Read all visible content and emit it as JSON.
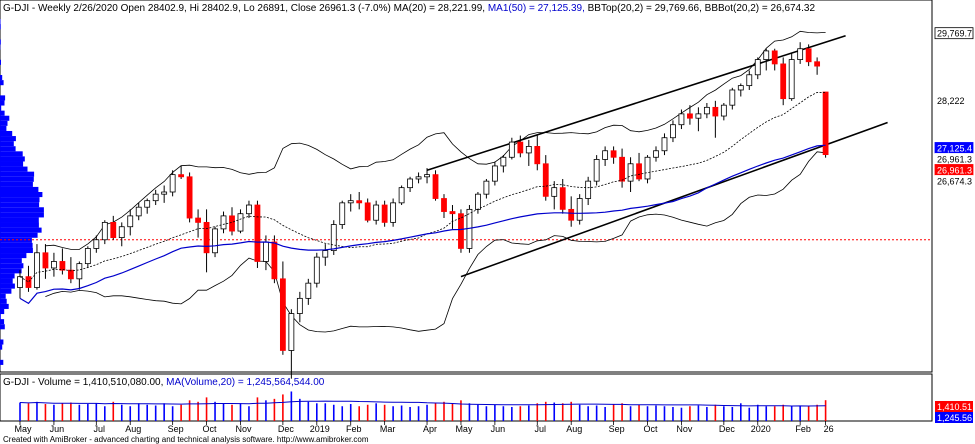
{
  "header": {
    "price_title": "G-DJI - Weekly 2/26/2020 Open 28402.9, Hi 28402.9, Lo 26891, Close 26961.3 (-7.0%) MA(20) = 28,221.99,",
    "ma50_label": "MA1(50) = 27,125.39,",
    "bb_label": "BBTop(20,2) = 29,769.66, BBBot(20,2) = 26,674.32",
    "volume_title": "G-DJI - Volume = 1,410,510,080.00,",
    "volume_ma_label": "MA(Volume,20) = 1,245,564,544.00"
  },
  "footer": {
    "credit": "Created with AmiBroker - advanced charting and technical analysis software. http://www.amibroker.com"
  },
  "price_axis": {
    "labels": [
      {
        "text": "29,769.7",
        "value": 29769.66,
        "bg": "#ffffff",
        "fg": "#000000",
        "border": "#000000"
      },
      {
        "text": "28,222",
        "value": 28221.99,
        "bg": "#ffffff",
        "fg": "#000000",
        "border": "#ffffff"
      },
      {
        "text": "27,125.4",
        "value": 27125.39,
        "bg": "#0000ff",
        "fg": "#ffffff",
        "border": "#0000ff"
      },
      {
        "text": "26,961.3",
        "value": 26961.3,
        "bg": "#ffffff",
        "fg": "#000000",
        "border": "#ffffff"
      },
      {
        "text": "26,961.3",
        "value": 26820,
        "bg": "#ff0000",
        "fg": "#ffffff",
        "border": "#ff0000"
      },
      {
        "text": "26,674.3",
        "value": 26674.32,
        "bg": "#ffffff",
        "fg": "#000000",
        "border": "#ffffff"
      }
    ]
  },
  "volume_axis": {
    "labels": [
      {
        "text": "1,410.51",
        "bg": "#ff0000",
        "fg": "#ffffff"
      },
      {
        "text": "1,245.56",
        "bg": "#0000ff",
        "fg": "#ffffff"
      }
    ]
  },
  "x_axis": {
    "labels": [
      "May",
      "Jun",
      "Jul",
      "Aug",
      "Sep",
      "Oct",
      "Nov",
      "Dec",
      "2019",
      "Feb",
      "Mar",
      "Apr",
      "May",
      "Jun",
      "Jul",
      "Aug",
      "Sep",
      "Oct",
      "Nov",
      "Dec",
      "2020",
      "Feb",
      "26"
    ],
    "label_week_index": [
      0,
      4,
      9,
      13,
      18,
      22,
      26,
      31,
      35,
      39,
      43,
      48,
      52,
      56,
      61,
      65,
      70,
      74,
      78,
      83,
      87,
      92,
      95
    ]
  },
  "colors": {
    "up": "#ffffff",
    "up_outline": "#000000",
    "down": "#ff0000",
    "ma20": "#000000",
    "ma50": "#0000cc",
    "bollinger": "#000000",
    "trendline": "#000000",
    "profile": "#0000ff",
    "level_line": "#ff0000",
    "volume_down": "#ff0000",
    "volume_up": "#0000ff",
    "volume_ma": "#0000cc"
  },
  "chart_data": {
    "type": "candlestick",
    "timeframe": "weekly",
    "y_scale": [
      22000,
      30200
    ],
    "reference_level": 25000,
    "price_at_high_profile": 25600,
    "candles": [
      {
        "o": 23900,
        "h": 24300,
        "l": 23650,
        "c": 24150
      },
      {
        "o": 24150,
        "h": 24400,
        "l": 23800,
        "c": 23900
      },
      {
        "o": 23900,
        "h": 24900,
        "l": 23850,
        "c": 24700
      },
      {
        "o": 24700,
        "h": 24900,
        "l": 24100,
        "c": 24350
      },
      {
        "o": 24350,
        "h": 24700,
        "l": 24150,
        "c": 24500
      },
      {
        "o": 24500,
        "h": 24800,
        "l": 24200,
        "c": 24300
      },
      {
        "o": 24300,
        "h": 24600,
        "l": 24000,
        "c": 24100
      },
      {
        "o": 24100,
        "h": 24500,
        "l": 23850,
        "c": 24450
      },
      {
        "o": 24450,
        "h": 24850,
        "l": 24350,
        "c": 24800
      },
      {
        "o": 24800,
        "h": 25100,
        "l": 24700,
        "c": 25000
      },
      {
        "o": 25000,
        "h": 25450,
        "l": 24900,
        "c": 25400
      },
      {
        "o": 25400,
        "h": 25550,
        "l": 25000,
        "c": 25050
      },
      {
        "o": 25050,
        "h": 25400,
        "l": 24850,
        "c": 25300
      },
      {
        "o": 25300,
        "h": 25700,
        "l": 25100,
        "c": 25550
      },
      {
        "o": 25550,
        "h": 25850,
        "l": 25450,
        "c": 25750
      },
      {
        "o": 25750,
        "h": 25950,
        "l": 25600,
        "c": 25900
      },
      {
        "o": 25900,
        "h": 26150,
        "l": 25800,
        "c": 26050
      },
      {
        "o": 26050,
        "h": 26250,
        "l": 25850,
        "c": 26100
      },
      {
        "o": 26100,
        "h": 26600,
        "l": 26000,
        "c": 26500
      },
      {
        "o": 26500,
        "h": 26700,
        "l": 26400,
        "c": 26450
      },
      {
        "o": 26450,
        "h": 26550,
        "l": 25400,
        "c": 25500
      },
      {
        "o": 25500,
        "h": 25700,
        "l": 25050,
        "c": 25400
      },
      {
        "o": 25400,
        "h": 25700,
        "l": 24250,
        "c": 24700
      },
      {
        "o": 24700,
        "h": 25300,
        "l": 24600,
        "c": 25250
      },
      {
        "o": 25250,
        "h": 25650,
        "l": 25150,
        "c": 25550
      },
      {
        "o": 25550,
        "h": 25750,
        "l": 25100,
        "c": 25200
      },
      {
        "o": 25200,
        "h": 25700,
        "l": 25150,
        "c": 25600
      },
      {
        "o": 25600,
        "h": 25900,
        "l": 25500,
        "c": 25800
      },
      {
        "o": 25800,
        "h": 25900,
        "l": 24350,
        "c": 24500
      },
      {
        "o": 24500,
        "h": 25100,
        "l": 24300,
        "c": 24950
      },
      {
        "o": 24950,
        "h": 25100,
        "l": 24000,
        "c": 24100
      },
      {
        "o": 24100,
        "h": 24500,
        "l": 22350,
        "c": 22450
      },
      {
        "o": 22450,
        "h": 23400,
        "l": 21800,
        "c": 23300
      },
      {
        "o": 23300,
        "h": 23800,
        "l": 23100,
        "c": 23650
      },
      {
        "o": 23650,
        "h": 24100,
        "l": 23500,
        "c": 24000
      },
      {
        "o": 24000,
        "h": 24700,
        "l": 23900,
        "c": 24600
      },
      {
        "o": 24600,
        "h": 24900,
        "l": 24400,
        "c": 24750
      },
      {
        "o": 24750,
        "h": 25450,
        "l": 24650,
        "c": 25350
      },
      {
        "o": 25350,
        "h": 25900,
        "l": 25250,
        "c": 25850
      },
      {
        "o": 25850,
        "h": 26050,
        "l": 25650,
        "c": 25900
      },
      {
        "o": 25900,
        "h": 26100,
        "l": 25700,
        "c": 25850
      },
      {
        "o": 25850,
        "h": 25950,
        "l": 25400,
        "c": 25450
      },
      {
        "o": 25450,
        "h": 25900,
        "l": 25350,
        "c": 25800
      },
      {
        "o": 25800,
        "h": 25900,
        "l": 25300,
        "c": 25400
      },
      {
        "o": 25400,
        "h": 25950,
        "l": 25300,
        "c": 25850
      },
      {
        "o": 25850,
        "h": 26250,
        "l": 25800,
        "c": 26200
      },
      {
        "o": 26200,
        "h": 26450,
        "l": 26100,
        "c": 26400
      },
      {
        "o": 26400,
        "h": 26550,
        "l": 26300,
        "c": 26450
      },
      {
        "o": 26450,
        "h": 26650,
        "l": 26300,
        "c": 26500
      },
      {
        "o": 26500,
        "h": 26600,
        "l": 25900,
        "c": 25950
      },
      {
        "o": 25950,
        "h": 26050,
        "l": 25500,
        "c": 25650
      },
      {
        "o": 25650,
        "h": 25800,
        "l": 25250,
        "c": 25600
      },
      {
        "o": 25600,
        "h": 25700,
        "l": 24700,
        "c": 24800
      },
      {
        "o": 24800,
        "h": 25800,
        "l": 24700,
        "c": 25700
      },
      {
        "o": 25700,
        "h": 26100,
        "l": 25600,
        "c": 26050
      },
      {
        "o": 26050,
        "h": 26400,
        "l": 25950,
        "c": 26350
      },
      {
        "o": 26350,
        "h": 26800,
        "l": 26250,
        "c": 26700
      },
      {
        "o": 26700,
        "h": 26950,
        "l": 26550,
        "c": 26900
      },
      {
        "o": 26900,
        "h": 27350,
        "l": 26850,
        "c": 27250
      },
      {
        "o": 27250,
        "h": 27400,
        "l": 26900,
        "c": 27000
      },
      {
        "o": 27000,
        "h": 27300,
        "l": 26700,
        "c": 27150
      },
      {
        "o": 27150,
        "h": 27400,
        "l": 26600,
        "c": 26750
      },
      {
        "o": 26750,
        "h": 26950,
        "l": 25900,
        "c": 26000
      },
      {
        "o": 26000,
        "h": 26350,
        "l": 25700,
        "c": 26200
      },
      {
        "o": 26200,
        "h": 26400,
        "l": 25600,
        "c": 25700
      },
      {
        "o": 25700,
        "h": 26000,
        "l": 25300,
        "c": 25450
      },
      {
        "o": 25450,
        "h": 26050,
        "l": 25350,
        "c": 25950
      },
      {
        "o": 25950,
        "h": 26450,
        "l": 25800,
        "c": 26350
      },
      {
        "o": 26350,
        "h": 26950,
        "l": 26250,
        "c": 26850
      },
      {
        "o": 26850,
        "h": 27150,
        "l": 26700,
        "c": 27050
      },
      {
        "o": 27050,
        "h": 27150,
        "l": 26750,
        "c": 26900
      },
      {
        "o": 26900,
        "h": 27100,
        "l": 26200,
        "c": 26350
      },
      {
        "o": 26350,
        "h": 26900,
        "l": 26100,
        "c": 26750
      },
      {
        "o": 26750,
        "h": 27000,
        "l": 26350,
        "c": 26400
      },
      {
        "o": 26400,
        "h": 26950,
        "l": 26300,
        "c": 26900
      },
      {
        "o": 26900,
        "h": 27150,
        "l": 26800,
        "c": 27050
      },
      {
        "o": 27050,
        "h": 27450,
        "l": 26950,
        "c": 27350
      },
      {
        "o": 27350,
        "h": 27750,
        "l": 27250,
        "c": 27650
      },
      {
        "o": 27650,
        "h": 28000,
        "l": 27550,
        "c": 27900
      },
      {
        "o": 27900,
        "h": 28100,
        "l": 27650,
        "c": 27800
      },
      {
        "o": 27800,
        "h": 28050,
        "l": 27500,
        "c": 27900
      },
      {
        "o": 27900,
        "h": 28150,
        "l": 27800,
        "c": 28050
      },
      {
        "o": 28050,
        "h": 28200,
        "l": 27350,
        "c": 27850
      },
      {
        "o": 27850,
        "h": 28150,
        "l": 27750,
        "c": 28100
      },
      {
        "o": 28100,
        "h": 28500,
        "l": 28000,
        "c": 28450
      },
      {
        "o": 28450,
        "h": 28600,
        "l": 28300,
        "c": 28550
      },
      {
        "o": 28550,
        "h": 28900,
        "l": 28450,
        "c": 28800
      },
      {
        "o": 28800,
        "h": 29200,
        "l": 28700,
        "c": 29150
      },
      {
        "o": 29150,
        "h": 29400,
        "l": 28900,
        "c": 29350
      },
      {
        "o": 29350,
        "h": 29400,
        "l": 28900,
        "c": 29050
      },
      {
        "o": 29050,
        "h": 29200,
        "l": 28100,
        "c": 28250
      },
      {
        "o": 28250,
        "h": 29300,
        "l": 28200,
        "c": 29150
      },
      {
        "o": 29150,
        "h": 29550,
        "l": 29050,
        "c": 29400
      },
      {
        "o": 29400,
        "h": 29500,
        "l": 29000,
        "c": 29100
      },
      {
        "o": 29100,
        "h": 29200,
        "l": 28800,
        "c": 29000
      },
      {
        "o": 28402.9,
        "h": 28402.9,
        "l": 26891,
        "c": 26961.3
      }
    ],
    "volume": [
      1.25,
      1.2,
      1.3,
      1.15,
      1.1,
      1.2,
      1.25,
      1.1,
      1.15,
      1.2,
      1.0,
      1.3,
      1.1,
      1.0,
      1.2,
      1.1,
      1.05,
      1.2,
      1.0,
      1.1,
      1.4,
      1.3,
      1.6,
      1.3,
      1.2,
      1.1,
      1.2,
      1.0,
      1.6,
      1.4,
      1.5,
      1.8,
      2.0,
      1.5,
      1.3,
      1.2,
      1.2,
      1.1,
      1.0,
      1.15,
      1.0,
      1.1,
      1.2,
      1.1,
      1.0,
      1.05,
      0.95,
      1.0,
      1.1,
      1.2,
      1.3,
      1.2,
      1.4,
      1.2,
      1.1,
      1.0,
      1.1,
      1.0,
      0.95,
      1.0,
      1.05,
      1.2,
      1.3,
      1.25,
      1.2,
      1.3,
      1.1,
      1.0,
      1.05,
      0.95,
      1.15,
      1.2,
      1.0,
      1.1,
      1.0,
      1.05,
      1.0,
      0.95,
      0.9,
      1.0,
      1.05,
      0.95,
      1.1,
      1.0,
      0.95,
      1.2,
      0.9,
      1.1,
      1.0,
      1.0,
      1.1,
      1.0,
      1.05,
      1.0,
      1.1,
      1.41
    ]
  }
}
